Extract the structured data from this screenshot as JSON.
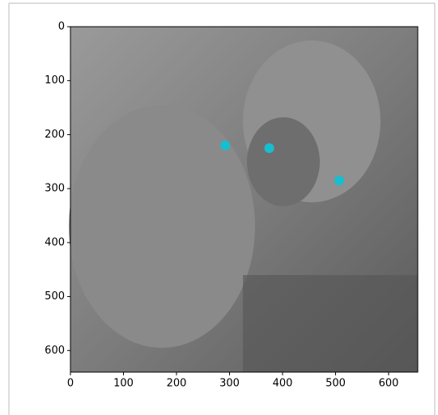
{
  "chart_data": {
    "type": "scatter",
    "x": [
      292,
      375,
      507
    ],
    "values": [
      220,
      225,
      285
    ],
    "color": "#17becf",
    "xlim": [
      0,
      655
    ],
    "ylim": [
      640,
      0
    ],
    "xticks": [
      0,
      100,
      200,
      300,
      400,
      500,
      600
    ],
    "yticks": [
      0,
      100,
      200,
      300,
      400,
      500,
      600
    ]
  }
}
